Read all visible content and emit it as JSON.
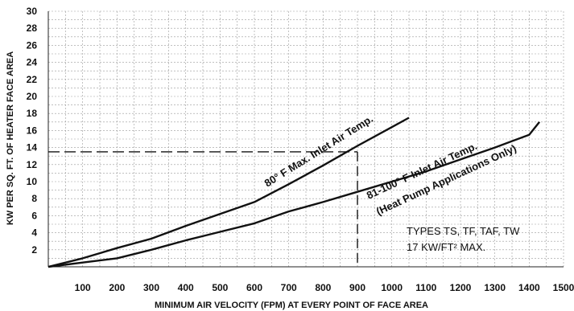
{
  "chart_data": {
    "type": "line",
    "title": "",
    "xlabel": "MINIMUM AIR VELOCITY (FPM) AT EVERY POINT OF FACE AREA",
    "ylabel": "KW PER SQ. FT. OF HEATER FACE AREA",
    "xlim": [
      0,
      1500
    ],
    "ylim": [
      0,
      30
    ],
    "x_ticks": [
      "100",
      "200",
      "300",
      "400",
      "500",
      "600",
      "700",
      "800",
      "900",
      "1000",
      "1100",
      "1200",
      "1300",
      "1400",
      "1500"
    ],
    "y_ticks": [
      "2",
      "4",
      "6",
      "8",
      "10",
      "12",
      "14",
      "16",
      "18",
      "20",
      "22",
      "24",
      "26",
      "28",
      "30"
    ],
    "grid": true,
    "series": [
      {
        "name": "80° F Max. Inlet Air Temp.",
        "x": [
          0,
          100,
          200,
          300,
          400,
          500,
          600,
          700,
          800,
          900,
          1000,
          1050
        ],
        "y": [
          0,
          1.0,
          2.2,
          3.3,
          4.8,
          6.2,
          7.6,
          9.7,
          11.9,
          14.2,
          16.4,
          17.5
        ]
      },
      {
        "name": "81-100° F Inlet Air Temp. (Heat Pump Applications Only)",
        "x": [
          0,
          100,
          200,
          300,
          400,
          500,
          600,
          700,
          800,
          900,
          1000,
          1100,
          1200,
          1300,
          1400,
          1430
        ],
        "y": [
          0,
          0.5,
          1.0,
          2.0,
          3.1,
          4.1,
          5.1,
          6.5,
          7.6,
          8.8,
          10.0,
          11.2,
          12.6,
          14.0,
          15.5,
          17.0
        ]
      }
    ],
    "reference_lines": {
      "horizontal_y": 13.5,
      "vertical_x": 900
    },
    "annotations": {
      "curve1_label": "80° F Max. Inlet Air Temp.",
      "curve2_label_line1": "81-100° F Inlet Air Temp.",
      "curve2_label_line2": "(Heat Pump Applications Only)",
      "types_line1": "TYPES TS, TF, TAF, TW",
      "types_line2": "17 KW/FT² MAX."
    }
  }
}
